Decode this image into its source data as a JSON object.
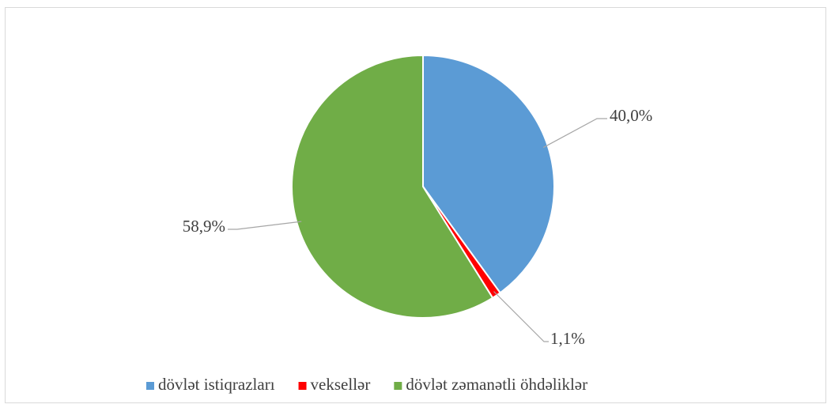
{
  "chart_data": {
    "type": "pie",
    "categories": [
      "dövlət istiqrazları",
      "veksellər",
      "dövlət zəmanətli öhdəliklər"
    ],
    "values": [
      40.0,
      1.1,
      58.9
    ],
    "value_labels": [
      "40,0%",
      "1,1%",
      "58,9%"
    ],
    "colors": [
      "#5b9bd5",
      "#ff0000",
      "#70ad47"
    ],
    "legend": "bottom"
  }
}
